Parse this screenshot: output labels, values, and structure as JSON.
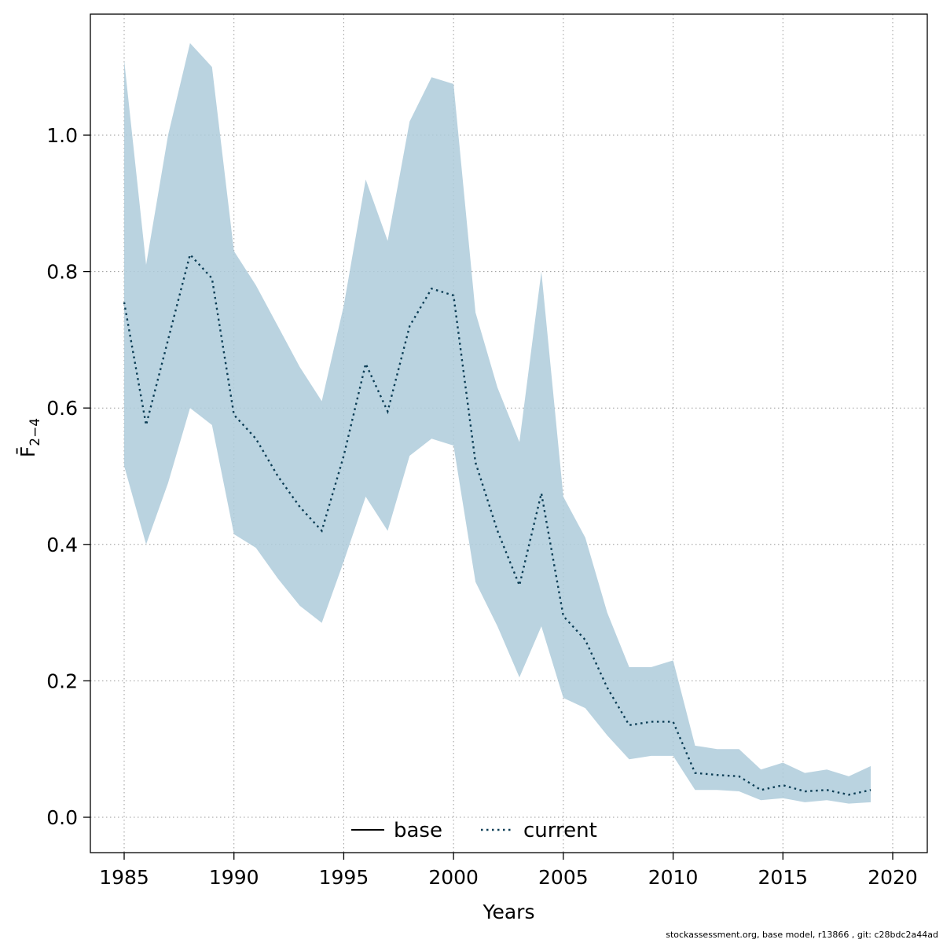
{
  "chart_data": {
    "type": "line",
    "title": "",
    "xlabel": "Years",
    "ylabel": "F̄2−4",
    "ylabel_f": "F̄",
    "ylabel_sub": "2−4",
    "xlim": [
      1983.5,
      2021.5
    ],
    "ylim": [
      -0.06,
      1.17
    ],
    "x_ticks": [
      1985,
      1990,
      1995,
      2000,
      2005,
      2010,
      2015,
      2020
    ],
    "y_ticks": [
      0.0,
      0.2,
      0.4,
      0.6,
      0.8,
      1.0
    ],
    "grid": true,
    "grid_color": "#9a9a9a",
    "band_color": "#aecbdb",
    "line_color": "#0b3d55",
    "legend_position": "bottom-center-inside",
    "legend": [
      {
        "label": "base",
        "style": "solid",
        "color": "#000000"
      },
      {
        "label": "current",
        "style": "dotted",
        "color": "#0b3d55"
      }
    ],
    "years": [
      1985,
      1986,
      1987,
      1988,
      1989,
      1990,
      1991,
      1992,
      1993,
      1994,
      1995,
      1996,
      1997,
      1998,
      1999,
      2000,
      2001,
      2002,
      2003,
      2004,
      2005,
      2006,
      2007,
      2008,
      2009,
      2010,
      2011,
      2012,
      2013,
      2014,
      2015,
      2016,
      2017,
      2018,
      2019
    ],
    "series": [
      {
        "name": "current",
        "values": [
          0.755,
          0.575,
          0.7,
          0.825,
          0.79,
          0.59,
          0.555,
          0.5,
          0.455,
          0.42,
          0.53,
          0.665,
          0.595,
          0.72,
          0.775,
          0.765,
          0.52,
          0.42,
          0.34,
          0.475,
          0.295,
          0.26,
          0.19,
          0.135,
          0.14,
          0.14,
          0.065,
          0.062,
          0.06,
          0.04,
          0.047,
          0.038,
          0.04,
          0.033,
          0.04
        ]
      }
    ],
    "band": {
      "name": "confidence-interval",
      "upper": [
        1.11,
        0.81,
        1.0,
        1.135,
        1.1,
        0.83,
        0.78,
        0.72,
        0.66,
        0.61,
        0.75,
        0.935,
        0.845,
        1.02,
        1.085,
        1.075,
        0.74,
        0.63,
        0.55,
        0.8,
        0.47,
        0.41,
        0.3,
        0.22,
        0.22,
        0.23,
        0.105,
        0.1,
        0.1,
        0.07,
        0.08,
        0.065,
        0.07,
        0.06,
        0.075
      ],
      "lower": [
        0.515,
        0.4,
        0.49,
        0.6,
        0.575,
        0.415,
        0.395,
        0.35,
        0.31,
        0.285,
        0.375,
        0.47,
        0.42,
        0.53,
        0.555,
        0.545,
        0.345,
        0.28,
        0.205,
        0.28,
        0.175,
        0.16,
        0.12,
        0.085,
        0.09,
        0.09,
        0.04,
        0.04,
        0.038,
        0.025,
        0.028,
        0.022,
        0.025,
        0.02,
        0.022
      ]
    }
  },
  "footer": "stockassessment.org, base model, r13866 , git: c28bdc2a44ad"
}
